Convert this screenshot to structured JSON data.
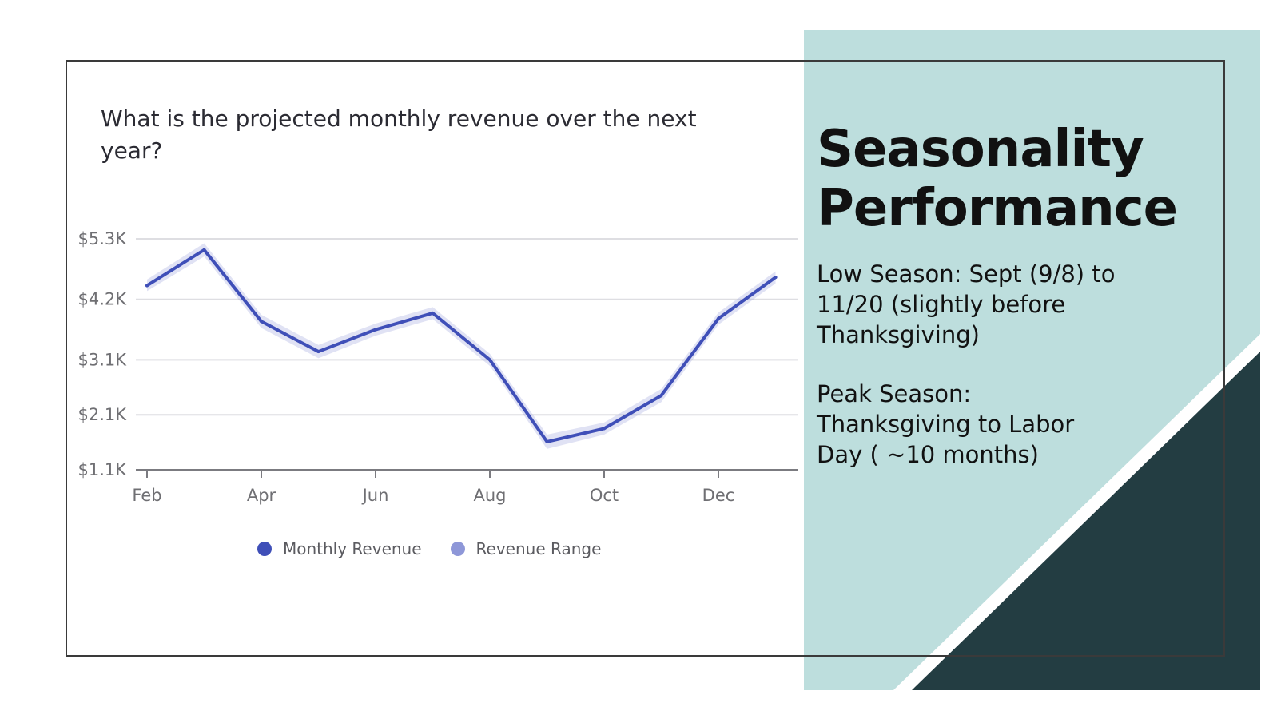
{
  "slide": {
    "heading": {
      "line1": "Seasonality",
      "line2": "Performance"
    },
    "paragraphs": [
      {
        "lines": [
          "Low Season: Sept (9/8) to",
          "11/20 (slightly before",
          "Thanksgiving)"
        ]
      },
      {
        "lines": [
          "Peak Season:",
          "Thanksgiving to Labor",
          "Day ( ~10 months)"
        ]
      }
    ],
    "colors": {
      "teal_panel": "#bddedd",
      "dark_corner": "#233d42",
      "frame": "#3a3a3a"
    }
  },
  "chart_data": {
    "type": "line",
    "title": "What is the projected monthly revenue over the next year?",
    "x": [
      "Feb",
      "Mar",
      "Apr",
      "May",
      "Jun",
      "Jul",
      "Aug",
      "Sep",
      "Oct",
      "Nov",
      "Dec",
      "Jan"
    ],
    "x_tick_labels": [
      "Feb",
      "Apr",
      "Jun",
      "Aug",
      "Oct",
      "Dec"
    ],
    "y_tick_values": [
      1100,
      2100,
      3100,
      4200,
      5300
    ],
    "y_tick_labels": [
      "$1.1K",
      "$2.1K",
      "$3.1K",
      "$4.2K",
      "$5.3K"
    ],
    "ylim": [
      1100,
      5300
    ],
    "series": [
      {
        "name": "Monthly Revenue",
        "values": [
          4450,
          5100,
          3800,
          3250,
          3650,
          3950,
          3100,
          1610,
          1850,
          2450,
          3850,
          4600
        ],
        "color": "#3f4fb8"
      },
      {
        "name": "Revenue Range",
        "lower": [
          4350,
          4980,
          3680,
          3130,
          3540,
          3840,
          2990,
          1480,
          1740,
          2330,
          3740,
          4490
        ],
        "upper": [
          4560,
          5220,
          3920,
          3370,
          3760,
          4060,
          3210,
          1740,
          1960,
          2570,
          3960,
          4710
        ],
        "color": "#8e97d8"
      }
    ],
    "legend": [
      "Monthly Revenue",
      "Revenue Range"
    ],
    "grid": true,
    "legend_position": "bottom"
  }
}
